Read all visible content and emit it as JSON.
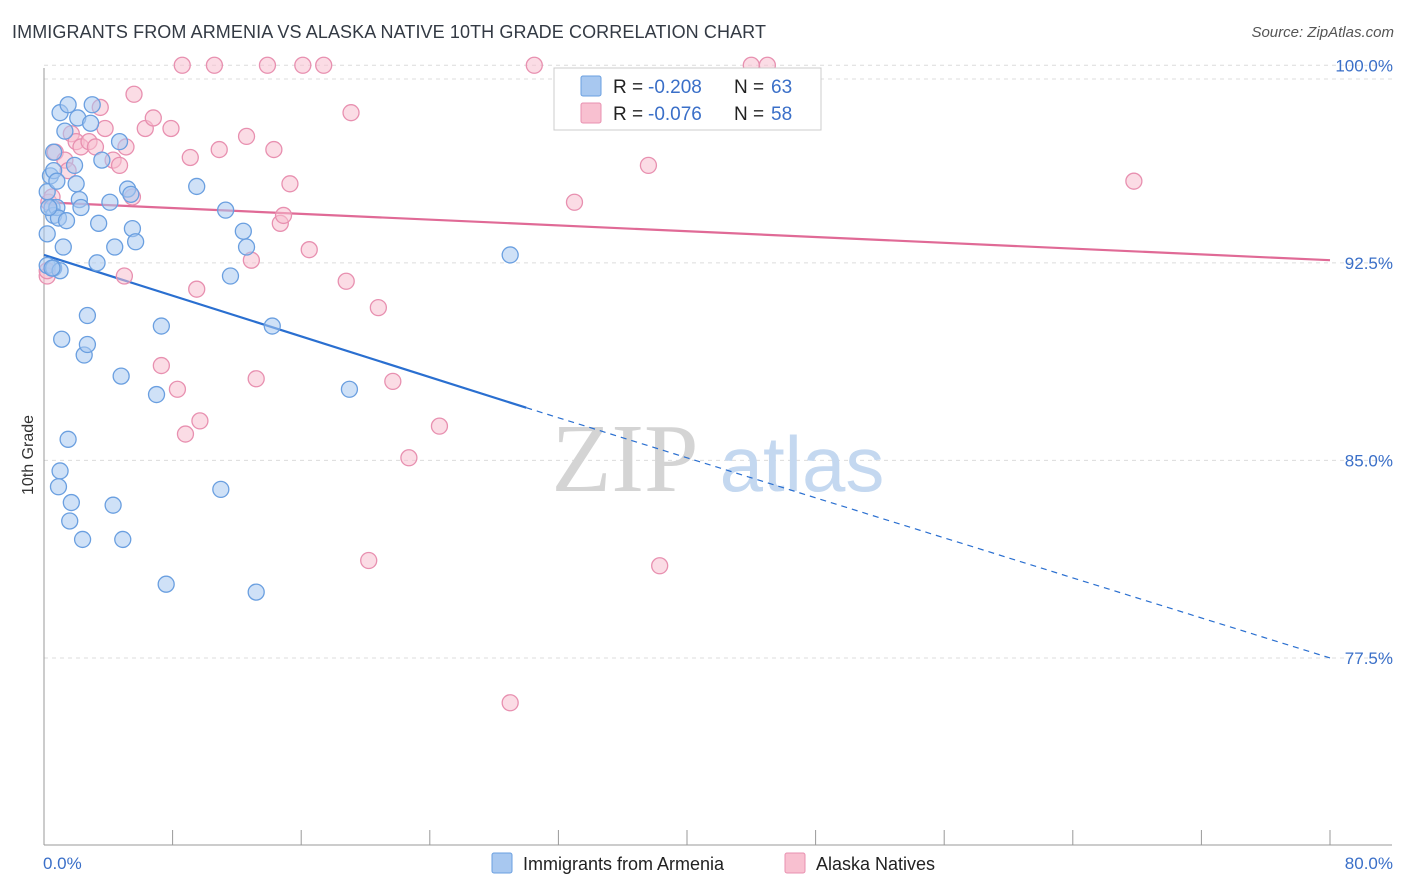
{
  "header": {
    "title": "IMMIGRANTS FROM ARMENIA VS ALASKA NATIVE 10TH GRADE CORRELATION CHART",
    "source": "Source: ZipAtlas.com"
  },
  "watermark": {
    "zip": "ZIP",
    "atlas": "atlas"
  },
  "colors": {
    "blue_fill": "#a8c8f0",
    "blue_stroke": "#6a9fe0",
    "blue_line": "#2a6fd0",
    "pink_fill": "#f8c0d0",
    "pink_stroke": "#e890b0",
    "pink_line": "#e06a96",
    "value_text": "#3a6fc8",
    "grid": "#dcdcdc"
  },
  "legend": {
    "rows": [
      {
        "r_label": "R = ",
        "r_value": "-0.208",
        "n_label": "N = ",
        "n_value": "63"
      },
      {
        "r_label": "R = ",
        "r_value": "-0.076",
        "n_label": "N = ",
        "n_value": "58"
      }
    ]
  },
  "bottom_legend": [
    "Immigrants from Armenia",
    "Alaska Natives"
  ],
  "chart_data": {
    "type": "scatter",
    "title": "IMMIGRANTS FROM ARMENIA VS ALASKA NATIVE 10TH GRADE CORRELATION CHART",
    "xlabel": "",
    "ylabel": "10th Grade",
    "xlim": [
      0,
      80
    ],
    "ylim": [
      70.4,
      100.2
    ],
    "x_tick_labels": [
      "0.0%",
      "80.0%"
    ],
    "y_ticks": [
      77.5,
      85.0,
      92.5,
      100.0
    ],
    "y_tick_labels": [
      "77.5%",
      "85.0%",
      "92.5%",
      "100.0%"
    ],
    "grid": true,
    "series": [
      {
        "name": "Immigrants from Armenia",
        "color": "#6a9fe0",
        "trend": {
          "x0": 0.0,
          "y0": 92.8,
          "x1": 30.0,
          "y1": 87.0,
          "dash_to_x": 80.0,
          "dash_to_y": 77.5
        },
        "points": [
          [
            0.2,
            95.2
          ],
          [
            0.2,
            93.6
          ],
          [
            0.2,
            92.4
          ],
          [
            0.4,
            95.8
          ],
          [
            0.5,
            94.6
          ],
          [
            0.6,
            96.7
          ],
          [
            0.6,
            96.0
          ],
          [
            0.6,
            94.3
          ],
          [
            0.6,
            92.3
          ],
          [
            0.8,
            95.6
          ],
          [
            0.8,
            94.6
          ],
          [
            0.9,
            94.2
          ],
          [
            1.0,
            92.2
          ],
          [
            1.0,
            98.2
          ],
          [
            1.1,
            89.6
          ],
          [
            1.2,
            93.1
          ],
          [
            1.3,
            97.5
          ],
          [
            1.4,
            94.1
          ],
          [
            1.5,
            98.5
          ],
          [
            1.5,
            85.8
          ],
          [
            1.0,
            84.6
          ],
          [
            0.9,
            84.0
          ],
          [
            1.6,
            82.7
          ],
          [
            1.7,
            83.4
          ],
          [
            1.9,
            96.2
          ],
          [
            2.0,
            95.5
          ],
          [
            2.1,
            98.0
          ],
          [
            2.2,
            94.9
          ],
          [
            2.3,
            94.6
          ],
          [
            2.4,
            82.0
          ],
          [
            2.5,
            89.0
          ],
          [
            2.7,
            89.4
          ],
          [
            2.7,
            90.5
          ],
          [
            2.9,
            97.8
          ],
          [
            3.0,
            98.5
          ],
          [
            3.3,
            92.5
          ],
          [
            3.4,
            94.0
          ],
          [
            3.6,
            96.4
          ],
          [
            4.1,
            94.8
          ],
          [
            4.4,
            93.1
          ],
          [
            4.3,
            83.3
          ],
          [
            4.7,
            97.1
          ],
          [
            4.8,
            88.2
          ],
          [
            4.9,
            82.0
          ],
          [
            5.2,
            95.3
          ],
          [
            5.4,
            95.1
          ],
          [
            5.5,
            93.8
          ],
          [
            5.7,
            93.3
          ],
          [
            7.0,
            87.5
          ],
          [
            7.3,
            90.1
          ],
          [
            7.6,
            80.3
          ],
          [
            9.5,
            95.4
          ],
          [
            11.0,
            83.9
          ],
          [
            11.3,
            94.5
          ],
          [
            11.6,
            92.0
          ],
          [
            12.4,
            93.7
          ],
          [
            12.6,
            93.1
          ],
          [
            13.2,
            80.0
          ],
          [
            14.2,
            90.1
          ],
          [
            19.0,
            87.7
          ],
          [
            29.0,
            92.8
          ],
          [
            0.5,
            92.3
          ],
          [
            0.3,
            94.6
          ]
        ]
      },
      {
        "name": "Alaska Natives",
        "color": "#e890b0",
        "trend": {
          "x0": 0.0,
          "y0": 94.8,
          "x1": 80.0,
          "y1": 92.6
        },
        "points": [
          [
            0.2,
            92.0
          ],
          [
            0.3,
            94.8
          ],
          [
            0.5,
            95.0
          ],
          [
            0.7,
            96.7
          ],
          [
            1.3,
            96.4
          ],
          [
            1.5,
            96.0
          ],
          [
            1.7,
            97.4
          ],
          [
            2.0,
            97.1
          ],
          [
            2.3,
            96.9
          ],
          [
            2.8,
            97.1
          ],
          [
            3.2,
            96.9
          ],
          [
            3.5,
            98.4
          ],
          [
            3.8,
            97.6
          ],
          [
            4.3,
            96.4
          ],
          [
            4.7,
            96.2
          ],
          [
            5.1,
            96.9
          ],
          [
            5.5,
            95.0
          ],
          [
            5.6,
            98.9
          ],
          [
            6.3,
            97.6
          ],
          [
            6.8,
            98.0
          ],
          [
            5.0,
            92.0
          ],
          [
            7.3,
            88.6
          ],
          [
            7.9,
            97.6
          ],
          [
            8.3,
            87.7
          ],
          [
            8.6,
            100.0
          ],
          [
            8.8,
            86.0
          ],
          [
            9.1,
            96.5
          ],
          [
            9.5,
            91.5
          ],
          [
            9.7,
            86.5
          ],
          [
            10.6,
            100.0
          ],
          [
            10.9,
            96.8
          ],
          [
            12.6,
            97.3
          ],
          [
            12.9,
            92.6
          ],
          [
            13.2,
            88.1
          ],
          [
            13.9,
            100.0
          ],
          [
            14.3,
            96.8
          ],
          [
            14.7,
            94.0
          ],
          [
            14.9,
            94.3
          ],
          [
            15.3,
            95.5
          ],
          [
            16.1,
            100.0
          ],
          [
            16.5,
            93.0
          ],
          [
            17.4,
            100.0
          ],
          [
            18.8,
            91.8
          ],
          [
            19.1,
            98.2
          ],
          [
            20.2,
            81.2
          ],
          [
            20.8,
            90.8
          ],
          [
            21.7,
            88.0
          ],
          [
            22.7,
            85.1
          ],
          [
            24.6,
            86.3
          ],
          [
            29.0,
            75.8
          ],
          [
            30.5,
            100.0
          ],
          [
            33.0,
            94.8
          ],
          [
            37.6,
            96.2
          ],
          [
            38.3,
            81.0
          ],
          [
            44.0,
            100.0
          ],
          [
            45.0,
            100.0
          ],
          [
            67.8,
            95.6
          ],
          [
            0.2,
            92.2
          ]
        ]
      }
    ]
  }
}
